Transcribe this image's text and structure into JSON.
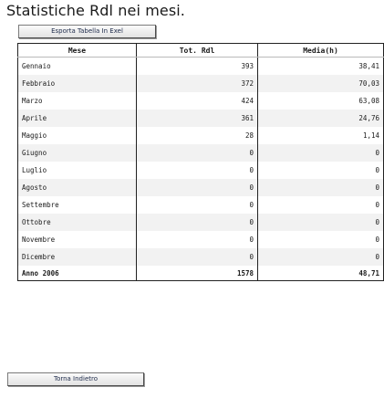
{
  "page": {
    "title": "Statistiche Rdl nei mesi."
  },
  "toolbar": {
    "export_label": "Esporta Tabella In Exel",
    "back_label": "Torna Indietro"
  },
  "table": {
    "headers": {
      "mese": "Mese",
      "tot": "Tot. Rdl",
      "media": "Media(h)"
    },
    "rows": [
      {
        "mese": "Gennaio",
        "tot": "393",
        "media": "38,41"
      },
      {
        "mese": "Febbraio",
        "tot": "372",
        "media": "70,03"
      },
      {
        "mese": "Marzo",
        "tot": "424",
        "media": "63,08"
      },
      {
        "mese": "Aprile",
        "tot": "361",
        "media": "24,76"
      },
      {
        "mese": "Maggio",
        "tot": "28",
        "media": "1,14"
      },
      {
        "mese": "Giugno",
        "tot": "0",
        "media": "0"
      },
      {
        "mese": "Luglio",
        "tot": "0",
        "media": "0"
      },
      {
        "mese": "Agosto",
        "tot": "0",
        "media": "0"
      },
      {
        "mese": "Settembre",
        "tot": "0",
        "media": "0"
      },
      {
        "mese": "Ottobre",
        "tot": "0",
        "media": "0"
      },
      {
        "mese": "Novembre",
        "tot": "0",
        "media": "0"
      },
      {
        "mese": "Dicembre",
        "tot": "0",
        "media": "0"
      }
    ],
    "total": {
      "mese": "Anno 2006",
      "tot": "1578",
      "media": "48,71"
    }
  }
}
